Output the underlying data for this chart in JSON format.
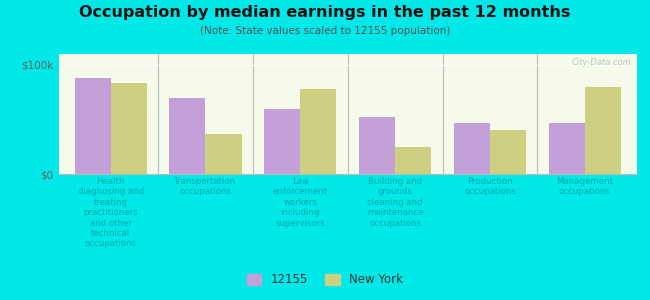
{
  "title": "Occupation by median earnings in the past 12 months",
  "subtitle": "(Note: State values scaled to 12155 population)",
  "background_color": "#00e8e8",
  "plot_bg_top": "#e8f0d0",
  "plot_bg_bottom": "#f5faea",
  "bar_color_12155": "#c4a0d8",
  "bar_color_ny": "#ccd080",
  "categories": [
    "Health\ndiagnosing and\ntreating\npractitioners\nand other\ntechnical\noccupations",
    "Transportation\noccupations",
    "Law\nenforcement\nworkers\nincluding\nsupervisors",
    "Building and\ngrounds\ncleaning and\nmaintenance\noccupations",
    "Production\noccupations",
    "Management\noccupations"
  ],
  "values_12155": [
    88000,
    70000,
    60000,
    52000,
    47000,
    47000
  ],
  "values_ny": [
    83000,
    37000,
    78000,
    25000,
    40000,
    80000
  ],
  "ylim": [
    0,
    110000
  ],
  "yticks": [
    0,
    100000
  ],
  "ytick_labels": [
    "$0",
    "$100k"
  ],
  "legend_label_12155": "12155",
  "legend_label_ny": "New York",
  "bar_width": 0.38,
  "label_color": "#00aaaa",
  "divider_color": "#bbbbbb",
  "watermark": "City-Data.com"
}
